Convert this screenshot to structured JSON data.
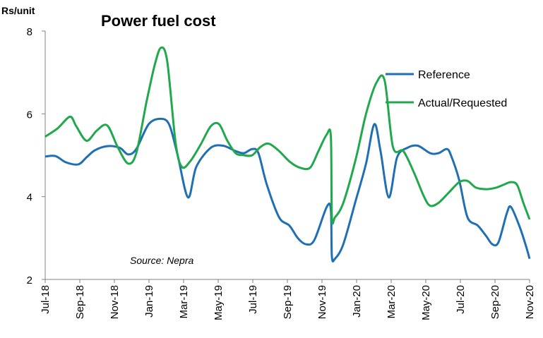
{
  "chart_data": {
    "type": "line",
    "title": "Power fuel cost",
    "ylabel": "Rs/unit",
    "source": "Source: Nepra",
    "ylim": [
      2,
      8
    ],
    "yticks": [
      2,
      4,
      6,
      8
    ],
    "x_start": "Jul-18",
    "x_end": "Nov-20",
    "x_tick_labels": [
      "Jul-18",
      "Sep-18",
      "Nov-18",
      "Jan-19",
      "Mar-19",
      "May-19",
      "Jul-19",
      "Sep-19",
      "Nov-19",
      "Jan-20",
      "Mar-20",
      "May-20",
      "Jul-20",
      "Sep-20",
      "Nov-20"
    ],
    "legend_position": "right",
    "grid": false,
    "series": [
      {
        "name": "Reference",
        "color": "#1f6fb5",
        "points": [
          [
            0,
            4.97
          ],
          [
            0.5,
            4.98
          ],
          [
            1.0,
            4.83
          ],
          [
            1.6,
            4.78
          ],
          [
            2.0,
            4.95
          ],
          [
            2.4,
            5.12
          ],
          [
            3.0,
            5.22
          ],
          [
            3.6,
            5.18
          ],
          [
            4.0,
            5.02
          ],
          [
            4.4,
            5.15
          ],
          [
            5.0,
            5.75
          ],
          [
            5.6,
            5.88
          ],
          [
            6.0,
            5.73
          ],
          [
            6.4,
            5.0
          ],
          [
            6.9,
            3.98
          ],
          [
            7.3,
            4.72
          ],
          [
            8.0,
            5.18
          ],
          [
            8.6,
            5.23
          ],
          [
            9.2,
            5.1
          ],
          [
            9.6,
            5.05
          ],
          [
            10.0,
            5.15
          ],
          [
            10.3,
            5.05
          ],
          [
            10.7,
            4.3
          ],
          [
            11.3,
            3.5
          ],
          [
            11.8,
            3.3
          ],
          [
            12.2,
            3.0
          ],
          [
            12.6,
            2.85
          ],
          [
            13.0,
            2.95
          ],
          [
            13.6,
            3.75
          ],
          [
            13.8,
            3.68
          ],
          [
            13.85,
            2.55
          ],
          [
            14.0,
            2.5
          ],
          [
            14.4,
            2.85
          ],
          [
            15.0,
            3.9
          ],
          [
            15.5,
            4.8
          ],
          [
            15.9,
            5.75
          ],
          [
            16.2,
            5.1
          ],
          [
            16.6,
            3.98
          ],
          [
            17.0,
            4.95
          ],
          [
            17.5,
            5.18
          ],
          [
            18.0,
            5.23
          ],
          [
            18.6,
            5.05
          ],
          [
            19.0,
            5.05
          ],
          [
            19.4,
            5.15
          ],
          [
            19.6,
            5.0
          ],
          [
            20.0,
            4.4
          ],
          [
            20.4,
            3.5
          ],
          [
            20.9,
            3.3
          ],
          [
            21.3,
            3.05
          ],
          [
            21.6,
            2.85
          ],
          [
            21.9,
            2.9
          ],
          [
            22.3,
            3.6
          ],
          [
            22.5,
            3.75
          ],
          [
            22.9,
            3.3
          ],
          [
            23.2,
            2.85
          ],
          [
            23.4,
            2.5
          ]
        ]
      },
      {
        "name": "Actual/Requested",
        "color": "#20a84c",
        "points": [
          [
            0,
            5.45
          ],
          [
            0.6,
            5.65
          ],
          [
            1.2,
            5.93
          ],
          [
            1.5,
            5.7
          ],
          [
            2.0,
            5.35
          ],
          [
            2.5,
            5.6
          ],
          [
            3.0,
            5.72
          ],
          [
            3.5,
            5.2
          ],
          [
            4.0,
            4.8
          ],
          [
            4.4,
            5.05
          ],
          [
            4.9,
            6.3
          ],
          [
            5.3,
            7.2
          ],
          [
            5.6,
            7.6
          ],
          [
            5.9,
            7.25
          ],
          [
            6.3,
            5.3
          ],
          [
            6.6,
            4.72
          ],
          [
            7.0,
            4.85
          ],
          [
            7.5,
            5.25
          ],
          [
            8.0,
            5.7
          ],
          [
            8.4,
            5.75
          ],
          [
            8.8,
            5.35
          ],
          [
            9.2,
            5.05
          ],
          [
            9.6,
            5.0
          ],
          [
            10.0,
            5.0
          ],
          [
            10.4,
            5.2
          ],
          [
            10.8,
            5.28
          ],
          [
            11.3,
            5.1
          ],
          [
            11.8,
            4.85
          ],
          [
            12.3,
            4.7
          ],
          [
            12.8,
            4.7
          ],
          [
            13.2,
            5.1
          ],
          [
            13.6,
            5.5
          ],
          [
            13.8,
            5.45
          ],
          [
            13.85,
            3.5
          ],
          [
            14.0,
            3.5
          ],
          [
            14.4,
            3.85
          ],
          [
            15.0,
            4.9
          ],
          [
            15.5,
            6.0
          ],
          [
            16.0,
            6.75
          ],
          [
            16.4,
            6.8
          ],
          [
            16.8,
            5.2
          ],
          [
            17.3,
            5.1
          ],
          [
            17.8,
            4.6
          ],
          [
            18.3,
            4.0
          ],
          [
            18.6,
            3.78
          ],
          [
            19.0,
            3.85
          ],
          [
            19.5,
            4.1
          ],
          [
            20.0,
            4.35
          ],
          [
            20.4,
            4.38
          ],
          [
            20.8,
            4.22
          ],
          [
            21.3,
            4.18
          ],
          [
            21.8,
            4.22
          ],
          [
            22.2,
            4.3
          ],
          [
            22.5,
            4.35
          ],
          [
            22.8,
            4.28
          ],
          [
            23.1,
            3.85
          ],
          [
            23.4,
            3.45
          ]
        ]
      }
    ]
  }
}
